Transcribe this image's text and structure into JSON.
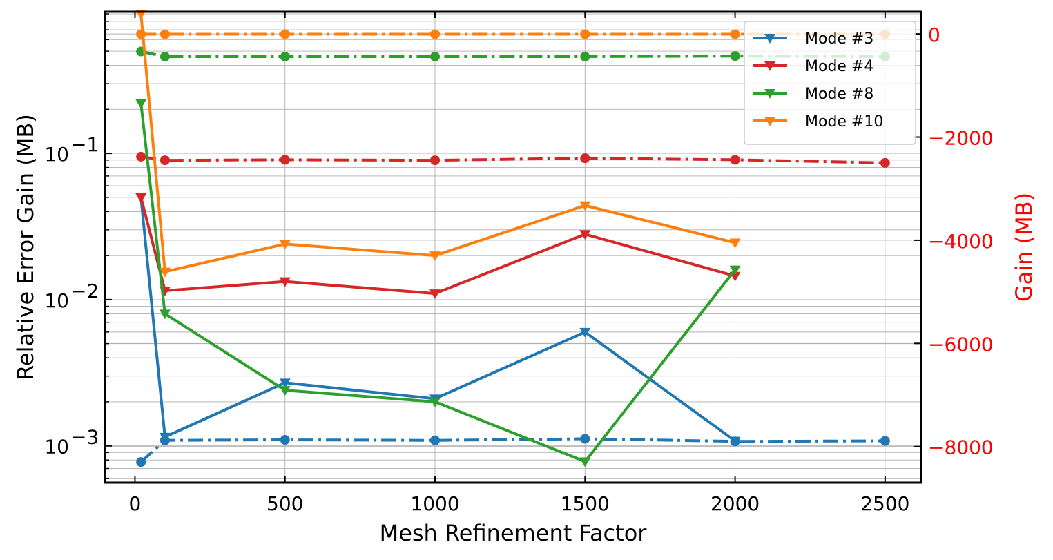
{
  "chart_data": {
    "type": "line",
    "xlabel": "Mesh Refinement Factor",
    "ylabel_left": "Relative Error Gain (MB)",
    "ylabel_right": "Gain (MB)",
    "right_axis_color": "#ff0000",
    "left_scale": "log",
    "xlim": [
      -100,
      2620
    ],
    "ylim_left": [
      0.00056,
      0.93
    ],
    "ylim_right": [
      -8700,
      430
    ],
    "x_ticks": [
      0,
      500,
      1000,
      1500,
      2000,
      2500
    ],
    "x_tick_labels": [
      "0",
      "500",
      "1000",
      "1500",
      "2000",
      "2500"
    ],
    "left_ticks": [
      0.001,
      0.01,
      0.1
    ],
    "left_tick_labels": [
      {
        "base": "10",
        "exp": "−3"
      },
      {
        "base": "10",
        "exp": "−2"
      },
      {
        "base": "10",
        "exp": "−1"
      }
    ],
    "right_ticks": [
      0,
      -2000,
      -4000,
      -6000,
      -8000
    ],
    "right_tick_labels": [
      "0",
      "−2000",
      "−4000",
      "−6000",
      "−8000"
    ],
    "grid": true,
    "legend_position": "top-right",
    "series_solid": [
      {
        "name": "Mode #3",
        "color": "#1f77b4",
        "x": [
          20,
          100,
          500,
          1000,
          1500,
          2000
        ],
        "y": [
          0.05,
          0.00115,
          0.0027,
          0.0021,
          0.006,
          0.00108
        ]
      },
      {
        "name": "Mode #4",
        "color": "#d62728",
        "x": [
          20,
          100,
          500,
          1000,
          1500,
          2000
        ],
        "y": [
          0.05,
          0.0115,
          0.0133,
          0.011,
          0.028,
          0.0145
        ]
      },
      {
        "name": "Mode #8",
        "color": "#2ca02c",
        "x": [
          20,
          100,
          500,
          1000,
          1500,
          2000
        ],
        "y": [
          0.22,
          0.008,
          0.0024,
          0.002,
          0.00078,
          0.016
        ]
      },
      {
        "name": "Mode #10",
        "color": "#ff7f0e",
        "x": [
          20,
          100,
          500,
          1000,
          1500,
          2000
        ],
        "y": [
          0.9,
          0.0155,
          0.024,
          0.02,
          0.044,
          0.0245
        ]
      }
    ],
    "series_dashdot": [
      {
        "color": "#1f77b4",
        "x": [
          20,
          100,
          500,
          1000,
          1500,
          2000,
          2500
        ],
        "y": [
          -8300,
          -7880,
          -7870,
          -7880,
          -7850,
          -7900,
          -7890
        ]
      },
      {
        "color": "#d62728",
        "x": [
          20,
          100,
          500,
          1000,
          1500,
          2000,
          2500
        ],
        "y": [
          -2380,
          -2450,
          -2440,
          -2450,
          -2410,
          -2440,
          -2500
        ]
      },
      {
        "color": "#2ca02c",
        "x": [
          20,
          100,
          500,
          1000,
          1500,
          2000,
          2500
        ],
        "y": [
          -340,
          -440,
          -440,
          -440,
          -440,
          -430,
          -440
        ]
      },
      {
        "color": "#ff7f0e",
        "x": [
          20,
          100,
          500,
          1000,
          1500,
          2000,
          2500
        ],
        "y": [
          -5,
          -5,
          -5,
          -5,
          -5,
          -5,
          -5
        ]
      }
    ]
  }
}
